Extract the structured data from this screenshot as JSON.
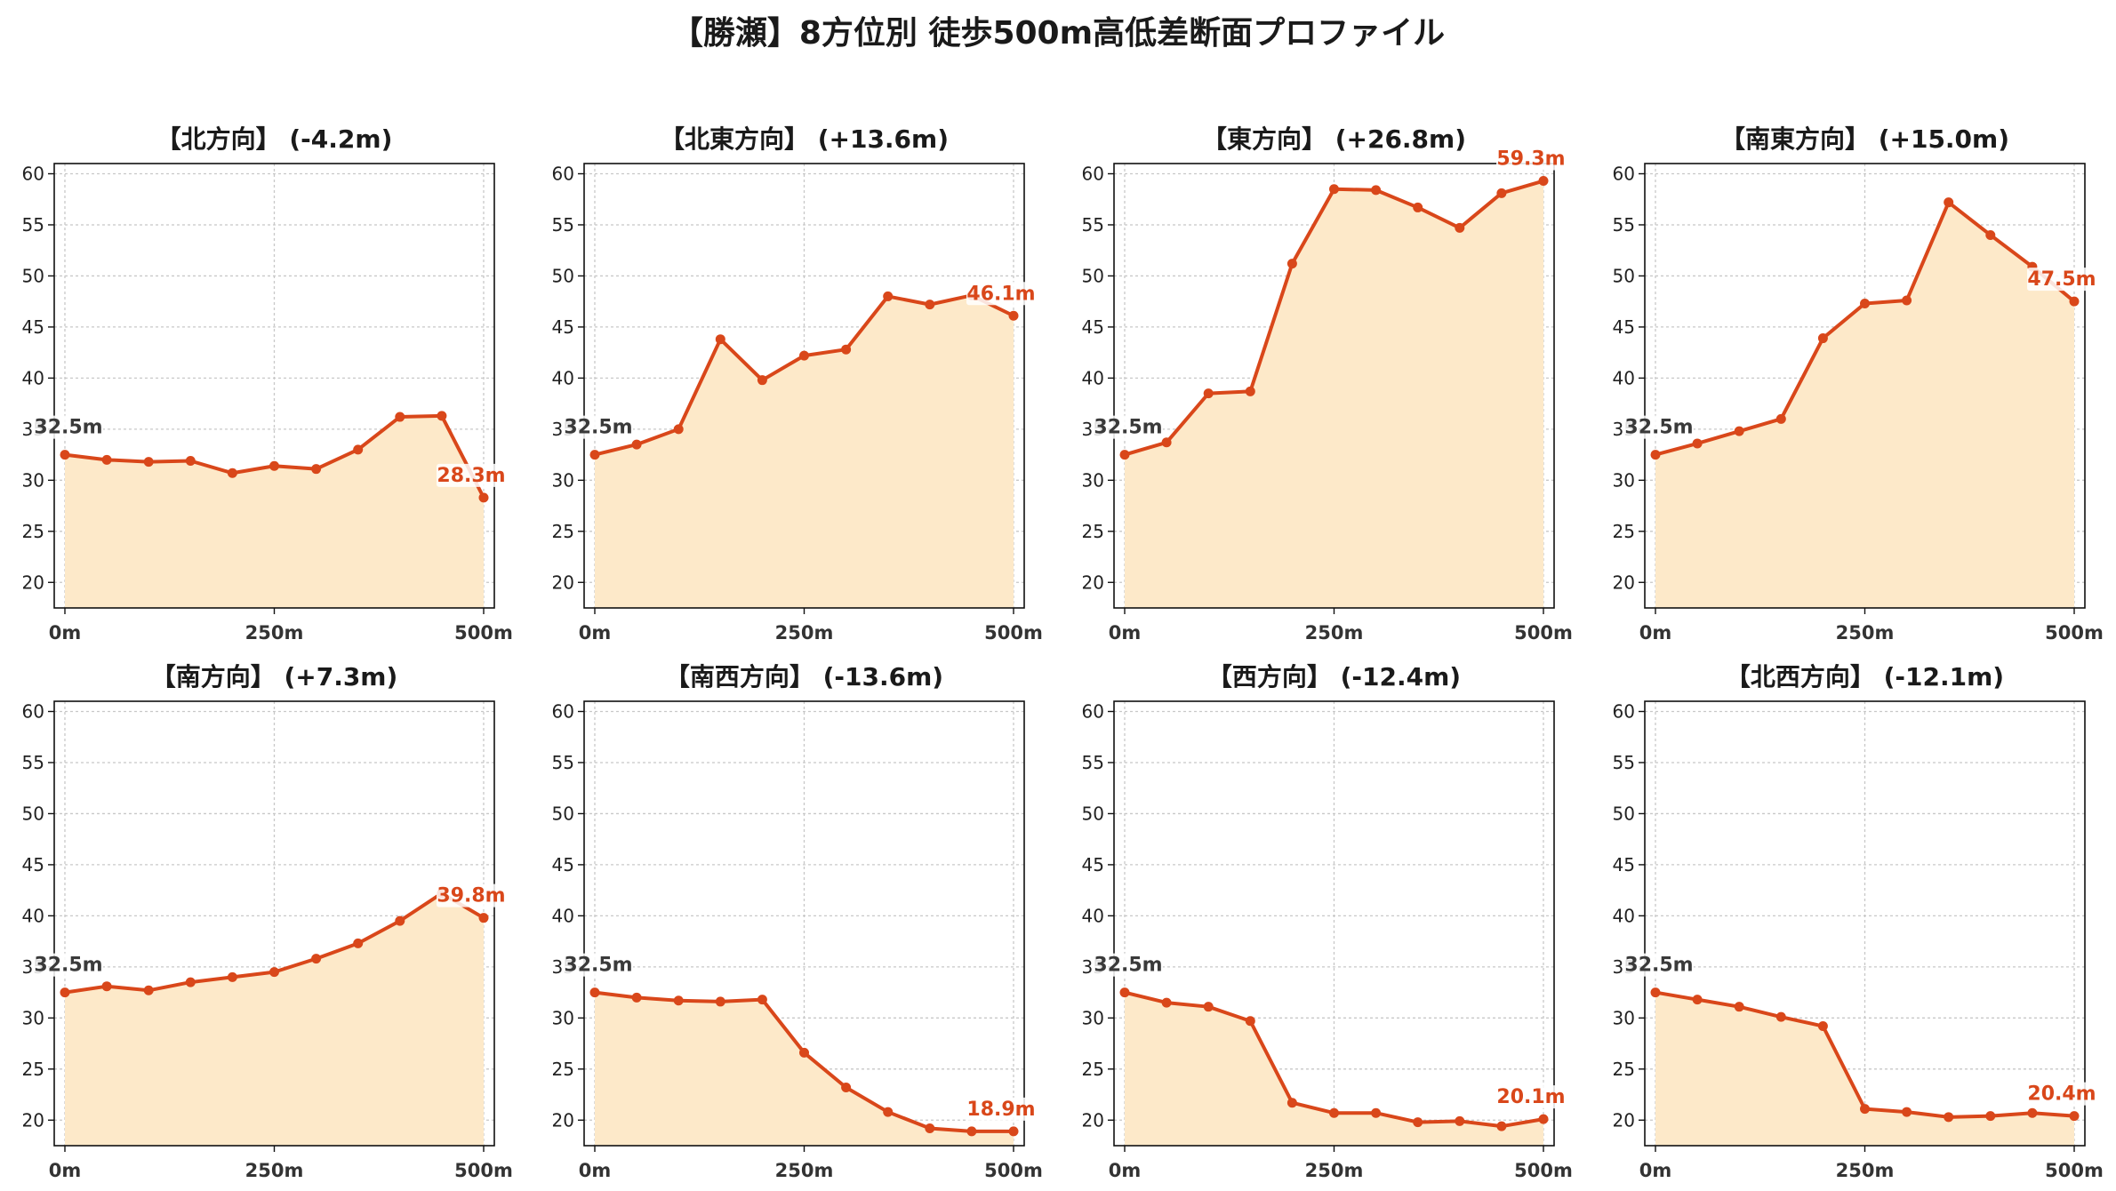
{
  "title": "【勝瀬】8方位別 徒歩500m高低差断面プロファイル",
  "colors": {
    "line": "#d9471a",
    "fill": "#fde9c9",
    "start_label": "#3a3a3a",
    "end_label": "#d9471a",
    "grid": "#c8c8c8"
  },
  "chart_data": [
    {
      "type": "area",
      "title": "【北方向】 (-4.2m)",
      "x": [
        0,
        50,
        100,
        150,
        200,
        250,
        300,
        350,
        400,
        450,
        500
      ],
      "y": [
        32.5,
        32.0,
        31.8,
        31.9,
        30.7,
        31.4,
        31.1,
        33.0,
        36.2,
        36.3,
        28.3
      ],
      "xticks": [
        "0m",
        "250m",
        "500m"
      ],
      "ylim": [
        17.5,
        61
      ],
      "yticks": [
        20,
        25,
        30,
        35,
        40,
        45,
        50,
        55,
        60
      ],
      "start_label": "32.5m",
      "end_label": "28.3m",
      "grid": true
    },
    {
      "type": "area",
      "title": "【北東方向】 (+13.6m)",
      "x": [
        0,
        50,
        100,
        150,
        200,
        250,
        300,
        350,
        400,
        450,
        500
      ],
      "y": [
        32.5,
        33.5,
        35.0,
        43.8,
        39.8,
        42.2,
        42.8,
        48.0,
        47.2,
        48.1,
        46.1
      ],
      "xticks": [
        "0m",
        "250m",
        "500m"
      ],
      "ylim": [
        17.5,
        61
      ],
      "yticks": [
        20,
        25,
        30,
        35,
        40,
        45,
        50,
        55,
        60
      ],
      "start_label": "32.5m",
      "end_label": "46.1m",
      "grid": true
    },
    {
      "type": "area",
      "title": "【東方向】 (+26.8m)",
      "x": [
        0,
        50,
        100,
        150,
        200,
        250,
        300,
        350,
        400,
        450,
        500
      ],
      "y": [
        32.5,
        33.7,
        38.5,
        38.7,
        51.2,
        58.5,
        58.4,
        56.7,
        54.7,
        58.1,
        59.3
      ],
      "xticks": [
        "0m",
        "250m",
        "500m"
      ],
      "ylim": [
        17.5,
        61
      ],
      "yticks": [
        20,
        25,
        30,
        35,
        40,
        45,
        50,
        55,
        60
      ],
      "start_label": "32.5m",
      "end_label": "59.3m",
      "grid": true
    },
    {
      "type": "area",
      "title": "【南東方向】 (+15.0m)",
      "x": [
        0,
        50,
        100,
        150,
        200,
        250,
        300,
        350,
        400,
        450,
        500
      ],
      "y": [
        32.5,
        33.6,
        34.8,
        36.0,
        43.9,
        47.3,
        47.6,
        57.2,
        54.0,
        50.9,
        47.5
      ],
      "xticks": [
        "0m",
        "250m",
        "500m"
      ],
      "ylim": [
        17.5,
        61
      ],
      "yticks": [
        20,
        25,
        30,
        35,
        40,
        45,
        50,
        55,
        60
      ],
      "start_label": "32.5m",
      "end_label": "47.5m",
      "grid": true
    },
    {
      "type": "area",
      "title": "【南方向】 (+7.3m)",
      "x": [
        0,
        50,
        100,
        150,
        200,
        250,
        300,
        350,
        400,
        450,
        500
      ],
      "y": [
        32.5,
        33.1,
        32.7,
        33.5,
        34.0,
        34.5,
        35.8,
        37.3,
        39.5,
        42.2,
        39.8
      ],
      "xticks": [
        "0m",
        "250m",
        "500m"
      ],
      "ylim": [
        17.5,
        61
      ],
      "yticks": [
        20,
        25,
        30,
        35,
        40,
        45,
        50,
        55,
        60
      ],
      "start_label": "32.5m",
      "end_label": "39.8m",
      "grid": true
    },
    {
      "type": "area",
      "title": "【南西方向】 (-13.6m)",
      "x": [
        0,
        50,
        100,
        150,
        200,
        250,
        300,
        350,
        400,
        450,
        500
      ],
      "y": [
        32.5,
        32.0,
        31.7,
        31.6,
        31.8,
        26.6,
        23.2,
        20.8,
        19.2,
        18.9,
        18.9
      ],
      "xticks": [
        "0m",
        "250m",
        "500m"
      ],
      "ylim": [
        17.5,
        61
      ],
      "yticks": [
        20,
        25,
        30,
        35,
        40,
        45,
        50,
        55,
        60
      ],
      "start_label": "32.5m",
      "end_label": "18.9m",
      "grid": true
    },
    {
      "type": "area",
      "title": "【西方向】 (-12.4m)",
      "x": [
        0,
        50,
        100,
        150,
        200,
        250,
        300,
        350,
        400,
        450,
        500
      ],
      "y": [
        32.5,
        31.5,
        31.1,
        29.7,
        21.7,
        20.7,
        20.7,
        19.8,
        19.9,
        19.4,
        20.1
      ],
      "xticks": [
        "0m",
        "250m",
        "500m"
      ],
      "ylim": [
        17.5,
        61
      ],
      "yticks": [
        20,
        25,
        30,
        35,
        40,
        45,
        50,
        55,
        60
      ],
      "start_label": "32.5m",
      "end_label": "20.1m",
      "grid": true
    },
    {
      "type": "area",
      "title": "【北西方向】 (-12.1m)",
      "x": [
        0,
        50,
        100,
        150,
        200,
        250,
        300,
        350,
        400,
        450,
        500
      ],
      "y": [
        32.5,
        31.8,
        31.1,
        30.1,
        29.2,
        21.1,
        20.8,
        20.3,
        20.4,
        20.7,
        20.4
      ],
      "xticks": [
        "0m",
        "250m",
        "500m"
      ],
      "ylim": [
        17.5,
        61
      ],
      "yticks": [
        20,
        25,
        30,
        35,
        40,
        45,
        50,
        55,
        60
      ],
      "start_label": "32.5m",
      "end_label": "20.4m",
      "grid": true
    }
  ]
}
